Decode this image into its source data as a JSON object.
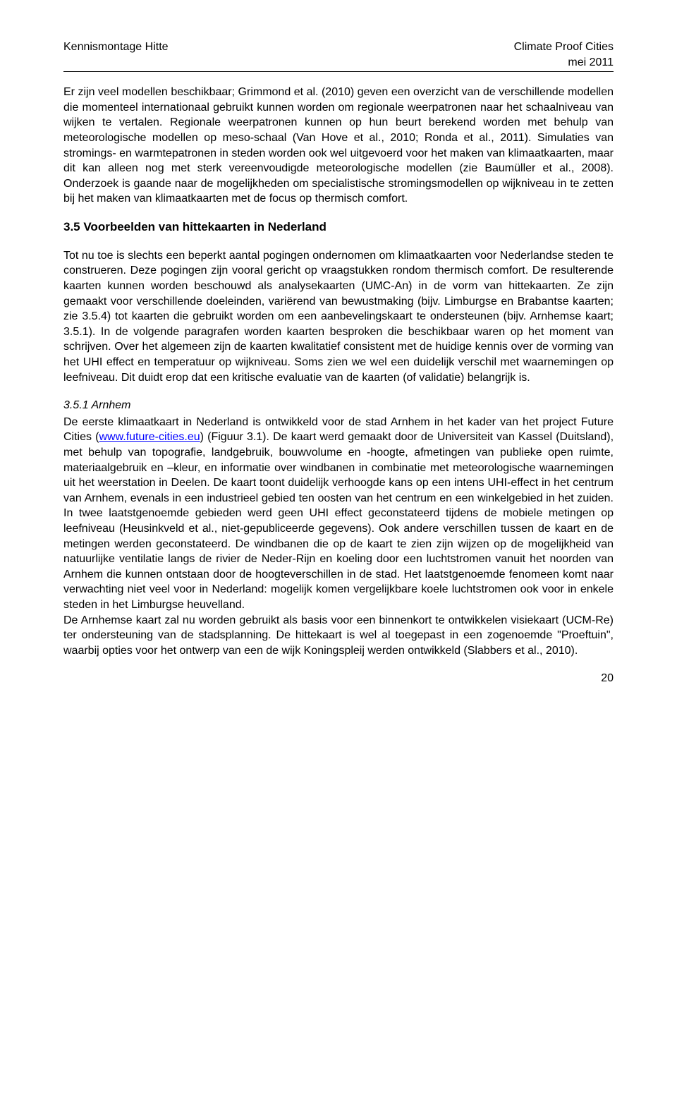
{
  "header": {
    "left": "Kennismontage Hitte",
    "right_line1": "Climate Proof Cities",
    "right_line2": "mei 2011"
  },
  "para1": "Er zijn veel modellen beschikbaar; Grimmond et al. (2010) geven een overzicht van de verschillende modellen die momenteel internationaal gebruikt kunnen worden om regionale weerpatronen naar het schaalniveau van wijken te vertalen. Regionale weerpatronen kunnen op hun beurt berekend worden met behulp van meteorologische modellen op meso-schaal (Van Hove et al., 2010; Ronda et al., 2011). Simulaties van stromings- en warmtepatronen in steden worden ook wel uitgevoerd voor het maken van klimaatkaarten, maar dit kan alleen nog met sterk vereenvoudigde meteorologische modellen (zie Baumüller et al., 2008). Onderzoek is gaande naar de mogelijkheden om specialistische stromingsmodellen op wijkniveau in te zetten bij het maken van klimaatkaarten met de focus op thermisch comfort.",
  "heading_35": "3.5   Voorbeelden van hittekaarten in Nederland",
  "para2": "Tot nu toe is slechts een beperkt aantal pogingen ondernomen om klimaatkaarten voor Nederlandse steden te construeren. Deze pogingen zijn vooral gericht op vraagstukken rondom thermisch comfort. De resulterende kaarten kunnen worden beschouwd als analysekaarten (UMC-An) in de vorm van hittekaarten. Ze zijn gemaakt voor verschillende doeleinden, variërend van bewustmaking (bijv. Limburgse en Brabantse kaarten; zie 3.5.4) tot kaarten die gebruikt worden om een aanbevelingskaart te ondersteunen (bijv. Arnhemse kaart; 3.5.1). In de volgende paragrafen worden kaarten besproken die beschikbaar waren op het moment van schrijven. Over het algemeen zijn de kaarten kwalitatief consistent met de huidige kennis over de vorming van het UHI effect en temperatuur op wijkniveau. Soms zien we wel een duidelijk verschil met waarnemingen op leefniveau. Dit duidt erop dat een kritische evaluatie van de kaarten (of validatie) belangrijk is.",
  "sub_351": "3.5.1   Arnhem",
  "para3_part1": "De eerste klimaatkaart in Nederland is ontwikkeld voor de stad Arnhem in het kader van het project Future Cities (",
  "link_text": "www.future-cities.eu",
  "para3_part2": ") (Figuur 3.1). De kaart werd gemaakt door de Universiteit van Kassel (Duitsland), met behulp van topografie, landgebruik, bouwvolume en -hoogte, afmetingen van publieke open ruimte, materiaalgebruik en –kleur, en informatie over windbanen in combinatie met meteorologische waarnemingen uit het weerstation in Deelen. De kaart toont duidelijk verhoogde kans op een intens UHI-effect in het centrum van Arnhem, evenals in een industrieel gebied ten oosten van het centrum en een winkelgebied in het zuiden. In twee laatstgenoemde gebieden werd geen UHI effect geconstateerd tijdens de mobiele metingen op leefniveau (Heusinkveld et al., niet-gepubliceerde gegevens). Ook andere verschillen tussen de kaart en de metingen werden geconstateerd. De windbanen die op de kaart te zien zijn wijzen op de mogelijkheid van natuurlijke ventilatie langs de rivier de Neder-Rijn en koeling door een luchtstromen vanuit het noorden van Arnhem die kunnen ontstaan door de hoogteverschillen in de stad. Het laatstgenoemde fenomeen komt naar verwachting niet veel voor in Nederland: mogelijk komen vergelijkbare koele luchtstromen ook voor in enkele steden in het Limburgse heuvelland.",
  "para4": "De Arnhemse kaart zal nu worden gebruikt als basis voor een binnenkort te ontwikkelen visiekaart (UCM-Re) ter ondersteuning van de stadsplanning. De hittekaart is wel al toegepast in een zogenoemde \"Proeftuin\", waarbij opties voor het ontwerp van een de wijk Koningspleij werden ontwikkeld (Slabbers et al., 2010).",
  "page_number": "20"
}
